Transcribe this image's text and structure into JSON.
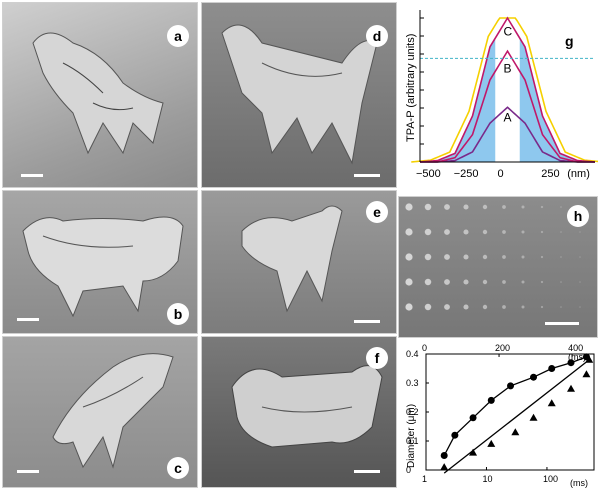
{
  "panels": {
    "a": {
      "label": "a"
    },
    "b": {
      "label": "b"
    },
    "c": {
      "label": "c"
    },
    "d": {
      "label": "d"
    },
    "e": {
      "label": "e"
    },
    "f": {
      "label": "f"
    },
    "g": {
      "label": "g"
    },
    "h": {
      "label": "h"
    }
  },
  "colors": {
    "sem_dark": "#3e3e3e",
    "sem_mid": "#7a7a7a",
    "sem_light": "#d8d8d8",
    "fill_blue": "#8ec8ee",
    "curve_yellow": "#f5d000",
    "curve_magenta": "#c0186a",
    "curve_purple": "#7a2a8a",
    "threshold_line": "#40b4c8"
  },
  "chart_data": [
    {
      "panel": "g",
      "type": "line",
      "xlabel": "(nm)",
      "ylabel": "TPA-P (arbitrary units)",
      "x_ticks": [
        "−500",
        "−250",
        "0",
        "250"
      ],
      "xlim": [
        -500,
        500
      ],
      "ylim": [
        0,
        1
      ],
      "threshold": 0.72,
      "curve_labels": [
        "A",
        "B",
        "C"
      ],
      "series": [
        {
          "name": "A",
          "x": [
            -500,
            -400,
            -300,
            -200,
            -100,
            0,
            100,
            200,
            300,
            400,
            500
          ],
          "values": [
            0.0,
            0.0,
            0.01,
            0.07,
            0.27,
            0.38,
            0.27,
            0.07,
            0.01,
            0.0,
            0.0
          ]
        },
        {
          "name": "B",
          "x": [
            -500,
            -400,
            -300,
            -200,
            -100,
            0,
            100,
            200,
            300,
            400,
            500
          ],
          "values": [
            0.0,
            0.0,
            0.03,
            0.19,
            0.57,
            0.77,
            0.57,
            0.19,
            0.03,
            0.0,
            0.0
          ]
        },
        {
          "name": "C",
          "x": [
            -500,
            -400,
            -300,
            -200,
            -100,
            0,
            100,
            200,
            300,
            400,
            500
          ],
          "values": [
            0.0,
            0.01,
            0.06,
            0.32,
            0.8,
            1.0,
            0.8,
            0.32,
            0.06,
            0.01,
            0.0
          ]
        }
      ],
      "grid": false
    },
    {
      "panel": "h",
      "type": "scatter",
      "title": "",
      "rows": 5,
      "cols": 10
    },
    {
      "panel": "plot",
      "type": "scatter",
      "ylabel": "Diameter (μm)",
      "top_axis_unit": "(ms)",
      "bottom_axis_unit": "(ms)",
      "top_ticks": [
        "0",
        "200",
        "400"
      ],
      "bottom_ticks": [
        "1",
        "10",
        "100"
      ],
      "y_ticks": [
        "0",
        "0.1",
        "0.2",
        "0.3",
        "0.4"
      ],
      "ylim": [
        0,
        0.4
      ],
      "top_xlim": [
        0,
        460
      ],
      "bottom_xlim_log": [
        1,
        600
      ],
      "series": [
        {
          "name": "circles",
          "x": [
            2,
            3,
            6,
            12,
            25,
            60,
            120,
            250,
            450
          ],
          "values": [
            0.05,
            0.12,
            0.18,
            0.24,
            0.29,
            0.32,
            0.35,
            0.37,
            0.39
          ]
        },
        {
          "name": "triangles",
          "x": [
            2,
            6,
            12,
            30,
            60,
            120,
            250,
            450,
            500
          ],
          "values": [
            0.01,
            0.06,
            0.09,
            0.13,
            0.18,
            0.23,
            0.28,
            0.33,
            0.38
          ]
        }
      ]
    }
  ]
}
